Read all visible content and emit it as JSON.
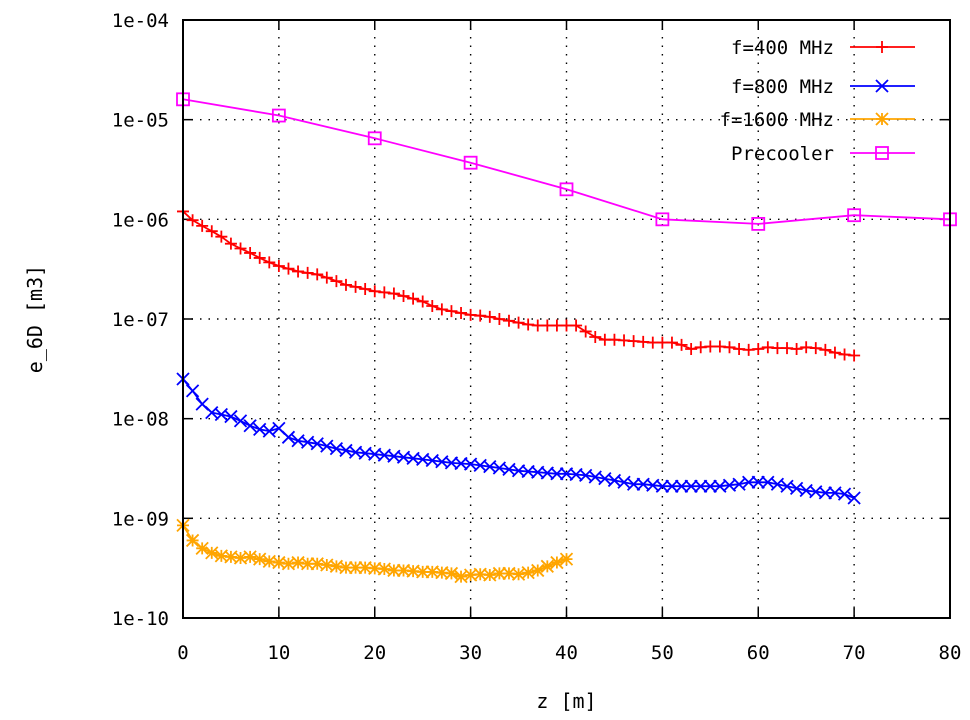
{
  "chart_data": {
    "type": "line",
    "xlabel": "z [m]",
    "ylabel": "e_6D [m3]",
    "xlim": [
      0,
      80
    ],
    "ylim": [
      1e-10,
      0.0001
    ],
    "yscale": "log",
    "grid": true,
    "grid_style": "dotted",
    "legend_position": "top-right",
    "x_ticks": [
      0,
      10,
      20,
      30,
      40,
      50,
      60,
      70,
      80
    ],
    "x_tick_labels": [
      "0",
      "10",
      "20",
      "30",
      "40",
      "50",
      "60",
      "70",
      "80"
    ],
    "y_ticks": [
      1e-10,
      1e-09,
      1e-08,
      1e-07,
      1e-06,
      1e-05,
      0.0001
    ],
    "y_tick_labels": [
      "1e-10",
      "1e-09",
      "1e-08",
      "1e-07",
      "1e-06",
      "1e-05",
      "1e-04"
    ],
    "series": [
      {
        "name": "f=400 MHz",
        "color": "#ff0000",
        "marker": "plus",
        "x": [
          0,
          1,
          2,
          3,
          4,
          5,
          6,
          7,
          8,
          9,
          10,
          11,
          12,
          13,
          14,
          15,
          16,
          17,
          18,
          19,
          20,
          21,
          22,
          23,
          24,
          25,
          26,
          27,
          28,
          29,
          30,
          31,
          32,
          33,
          34,
          35,
          36,
          37,
          38,
          39,
          40,
          41,
          42,
          43,
          44,
          45,
          46,
          47,
          48,
          49,
          50,
          51,
          52,
          53,
          54,
          55,
          56,
          57,
          58,
          59,
          60,
          61,
          62,
          63,
          64,
          65,
          66,
          67,
          68,
          69,
          70
        ],
        "y": [
          1.2e-06,
          9.8e-07,
          8.6e-07,
          7.6e-07,
          6.7e-07,
          5.7e-07,
          5.1e-07,
          4.6e-07,
          4.1e-07,
          3.7e-07,
          3.4e-07,
          3.2e-07,
          3e-07,
          2.9e-07,
          2.8e-07,
          2.6e-07,
          2.4e-07,
          2.2e-07,
          2.1e-07,
          2e-07,
          1.9e-07,
          1.85e-07,
          1.8e-07,
          1.7e-07,
          1.6e-07,
          1.5e-07,
          1.35e-07,
          1.25e-07,
          1.2e-07,
          1.15e-07,
          1.1e-07,
          1.08e-07,
          1.05e-07,
          1e-07,
          9.6e-08,
          9.2e-08,
          8.8e-08,
          8.6e-08,
          8.6e-08,
          8.6e-08,
          8.6e-08,
          8.6e-08,
          7.5e-08,
          6.6e-08,
          6.2e-08,
          6.2e-08,
          6.1e-08,
          6e-08,
          5.9e-08,
          5.8e-08,
          5.8e-08,
          5.8e-08,
          5.5e-08,
          5e-08,
          5.2e-08,
          5.3e-08,
          5.3e-08,
          5.2e-08,
          5e-08,
          4.9e-08,
          5e-08,
          5.2e-08,
          5.1e-08,
          5.1e-08,
          5e-08,
          5.2e-08,
          5.1e-08,
          4.9e-08,
          4.6e-08,
          4.4e-08,
          4.3e-08
        ]
      },
      {
        "name": "f=800 MHz",
        "color": "#0000ff",
        "marker": "cross",
        "x": [
          0,
          1,
          2,
          3,
          4,
          5,
          6,
          7,
          8,
          9,
          10,
          11,
          12,
          13,
          14,
          15,
          16,
          17,
          18,
          19,
          20,
          21,
          22,
          23,
          24,
          25,
          26,
          27,
          28,
          29,
          30,
          31,
          32,
          33,
          34,
          35,
          36,
          37,
          38,
          39,
          40,
          41,
          42,
          43,
          44,
          45,
          46,
          47,
          48,
          49,
          50,
          51,
          52,
          53,
          54,
          55,
          56,
          57,
          58,
          59,
          60,
          61,
          62,
          63,
          64,
          65,
          66,
          67,
          68,
          69,
          70
        ],
        "y": [
          2.5e-08,
          1.9e-08,
          1.4e-08,
          1.15e-08,
          1.1e-08,
          1.05e-08,
          9.5e-09,
          8.5e-09,
          7.8e-09,
          7.5e-09,
          8e-09,
          6.5e-09,
          6e-09,
          5.8e-09,
          5.6e-09,
          5.3e-09,
          5e-09,
          4.8e-09,
          4.6e-09,
          4.5e-09,
          4.4e-09,
          4.3e-09,
          4.2e-09,
          4.1e-09,
          4e-09,
          3.9e-09,
          3.8e-09,
          3.7e-09,
          3.6e-09,
          3.55e-09,
          3.5e-09,
          3.4e-09,
          3.3e-09,
          3.2e-09,
          3.1e-09,
          3e-09,
          2.95e-09,
          2.9e-09,
          2.85e-09,
          2.8e-09,
          2.8e-09,
          2.75e-09,
          2.7e-09,
          2.6e-09,
          2.5e-09,
          2.4e-09,
          2.3e-09,
          2.2e-09,
          2.2e-09,
          2.15e-09,
          2.1e-09,
          2.1e-09,
          2.1e-09,
          2.1e-09,
          2.1e-09,
          2.1e-09,
          2.1e-09,
          2.15e-09,
          2.2e-09,
          2.3e-09,
          2.3e-09,
          2.3e-09,
          2.2e-09,
          2.1e-09,
          2e-09,
          1.9e-09,
          1.85e-09,
          1.8e-09,
          1.8e-09,
          1.75e-09,
          1.6e-09
        ]
      },
      {
        "name": "f=1600 MHz",
        "color": "#ffa500",
        "marker": "star",
        "x": [
          0,
          1,
          2,
          3,
          4,
          5,
          6,
          7,
          8,
          9,
          10,
          11,
          12,
          13,
          14,
          15,
          16,
          17,
          18,
          19,
          20,
          21,
          22,
          23,
          24,
          25,
          26,
          27,
          28,
          29,
          30,
          31,
          32,
          33,
          34,
          35,
          36,
          37,
          38,
          39,
          40
        ],
        "y": [
          8.5e-10,
          6e-10,
          5e-10,
          4.5e-10,
          4.2e-10,
          4.1e-10,
          4e-10,
          4.1e-10,
          3.9e-10,
          3.7e-10,
          3.6e-10,
          3.5e-10,
          3.6e-10,
          3.5e-10,
          3.5e-10,
          3.4e-10,
          3.3e-10,
          3.2e-10,
          3.2e-10,
          3.2e-10,
          3.15e-10,
          3.1e-10,
          3e-10,
          3e-10,
          2.95e-10,
          2.9e-10,
          2.9e-10,
          2.85e-10,
          2.8e-10,
          2.6e-10,
          2.7e-10,
          2.75e-10,
          2.7e-10,
          2.8e-10,
          2.8e-10,
          2.75e-10,
          2.85e-10,
          3e-10,
          3.3e-10,
          3.6e-10,
          3.9e-10
        ]
      },
      {
        "name": "Precooler",
        "color": "#ff00ff",
        "marker": "open-square",
        "x": [
          0,
          10,
          20,
          30,
          40,
          50,
          60,
          70,
          80
        ],
        "y": [
          1.6e-05,
          1.1e-05,
          6.5e-06,
          3.7e-06,
          2e-06,
          1e-06,
          9e-07,
          1.1e-06,
          1e-06
        ]
      }
    ]
  }
}
